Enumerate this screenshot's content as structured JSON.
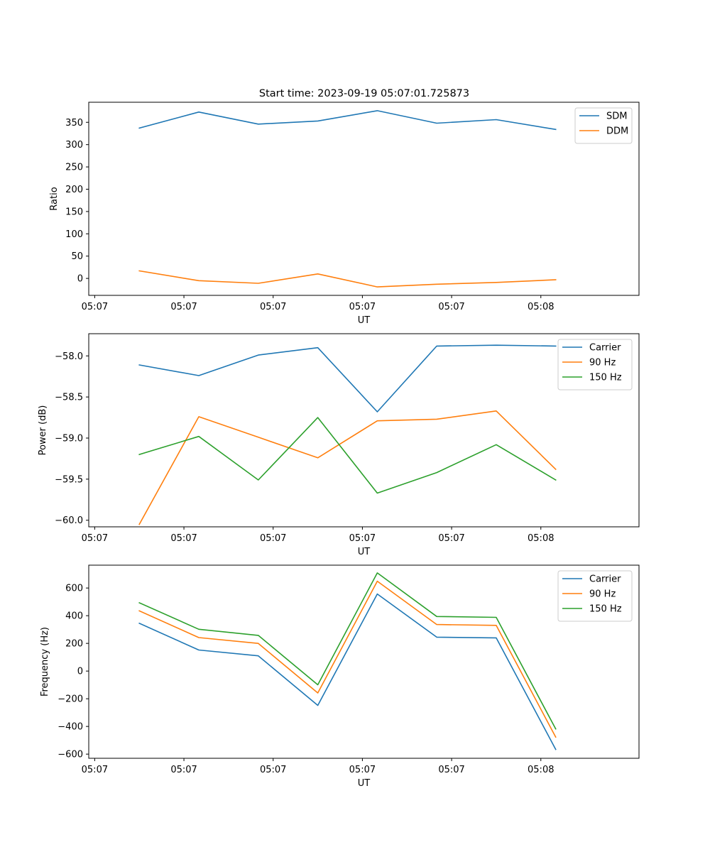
{
  "figure": {
    "title": "Start time: 2023-09-19 05:07:01.725873"
  },
  "chart_data": [
    {
      "type": "line",
      "title": "Start time: 2023-09-19 05:07:01.725873",
      "xlabel": "UT",
      "ylabel": "Ratio",
      "xlim": [
        -0.85,
        8.4
      ],
      "ylim": [
        -38,
        395
      ],
      "x_ticks": [
        -0.75,
        0.75,
        2.25,
        3.75,
        5.25,
        6.75
      ],
      "x_tick_labels": [
        "05:07",
        "05:07",
        "05:07",
        "05:07",
        "05:07",
        "05:08"
      ],
      "y_ticks": [
        0,
        50,
        100,
        150,
        200,
        250,
        300,
        350
      ],
      "y_tick_labels": [
        "0",
        "50",
        "100",
        "150",
        "200",
        "250",
        "300",
        "350"
      ],
      "legend_position": "upper right",
      "x": [
        0,
        1,
        2,
        3,
        4,
        5,
        6,
        7
      ],
      "series": [
        {
          "name": "SDM",
          "color": "#1f77b4",
          "values": [
            337,
            373,
            346,
            353,
            376,
            348,
            356,
            334
          ]
        },
        {
          "name": "DDM",
          "color": "#ff7f0e",
          "values": [
            17,
            -5,
            -11,
            10,
            -19,
            -13,
            -9,
            -3
          ]
        }
      ]
    },
    {
      "type": "line",
      "title": "",
      "xlabel": "UT",
      "ylabel": "Power (dB)",
      "xlim": [
        -0.85,
        8.4
      ],
      "ylim": [
        -60.08,
        -57.73
      ],
      "x_ticks": [
        -0.75,
        0.75,
        2.25,
        3.75,
        5.25,
        6.75
      ],
      "x_tick_labels": [
        "05:07",
        "05:07",
        "05:07",
        "05:07",
        "05:07",
        "05:08"
      ],
      "y_ticks": [
        -60.0,
        -59.5,
        -59.0,
        -58.5,
        -58.0
      ],
      "y_tick_labels": [
        "−60.0",
        "−59.5",
        "−59.0",
        "−58.5",
        "−58.0"
      ],
      "legend_position": "upper right",
      "x": [
        0,
        1,
        2,
        3,
        4,
        5,
        6,
        7
      ],
      "series": [
        {
          "name": "Carrier",
          "color": "#1f77b4",
          "values": [
            -58.11,
            -58.24,
            -57.99,
            -57.9,
            -58.68,
            -57.88,
            -57.87,
            -57.88
          ]
        },
        {
          "name": "90 Hz",
          "color": "#ff7f0e",
          "values": [
            -60.05,
            -58.74,
            -58.99,
            -59.24,
            -58.79,
            -58.77,
            -58.67,
            -59.38
          ]
        },
        {
          "name": "150 Hz",
          "color": "#2ca02c",
          "values": [
            -59.2,
            -58.98,
            -59.51,
            -58.75,
            -59.67,
            -59.42,
            -59.08,
            -59.51
          ]
        }
      ]
    },
    {
      "type": "line",
      "title": "",
      "xlabel": "UT",
      "ylabel": "Frequency (Hz)",
      "xlim": [
        -0.85,
        8.4
      ],
      "ylim": [
        -630,
        765
      ],
      "x_ticks": [
        -0.75,
        0.75,
        2.25,
        3.75,
        5.25,
        6.75
      ],
      "x_tick_labels": [
        "05:07",
        "05:07",
        "05:07",
        "05:07",
        "05:07",
        "05:08"
      ],
      "y_ticks": [
        -600,
        -400,
        -200,
        0,
        200,
        400,
        600
      ],
      "y_tick_labels": [
        "−600",
        "−400",
        "−200",
        "0",
        "200",
        "400",
        "600"
      ],
      "legend_position": "upper right",
      "x": [
        0,
        1,
        2,
        3,
        4,
        5,
        6,
        7
      ],
      "series": [
        {
          "name": "Carrier",
          "color": "#1f77b4",
          "values": [
            345,
            152,
            110,
            -248,
            557,
            245,
            240,
            -566
          ]
        },
        {
          "name": "90 Hz",
          "color": "#ff7f0e",
          "values": [
            435,
            242,
            200,
            -158,
            649,
            336,
            330,
            -477
          ]
        },
        {
          "name": "150 Hz",
          "color": "#2ca02c",
          "values": [
            493,
            302,
            258,
            -99,
            709,
            394,
            388,
            -418
          ]
        }
      ]
    }
  ]
}
